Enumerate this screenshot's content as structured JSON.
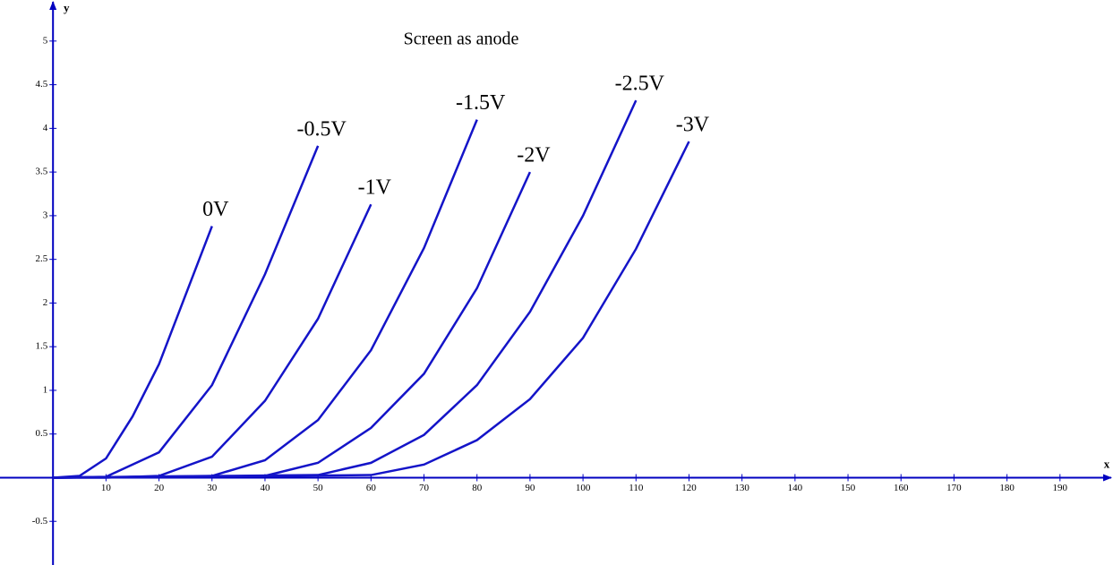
{
  "chart_data": {
    "type": "line",
    "title": "Screen as anode",
    "x_label": "x",
    "y_label": "y",
    "xlim": [
      -10,
      200
    ],
    "ylim": [
      -1,
      5.47
    ],
    "xticks": [
      10,
      20,
      30,
      40,
      50,
      60,
      70,
      80,
      90,
      100,
      110,
      120,
      130,
      140,
      150,
      160,
      170,
      180,
      190
    ],
    "yticks": [
      -0.5,
      0.5,
      1,
      1.5,
      2,
      2.5,
      3,
      3.5,
      4,
      4.5,
      5
    ],
    "axis_color": "#0000c0",
    "series": [
      {
        "name": "0V",
        "color": "#1414c8",
        "x": [
          0,
          5,
          10,
          15,
          20,
          30
        ],
        "values": [
          0,
          0.02,
          0.22,
          0.7,
          1.3,
          2.88
        ]
      },
      {
        "name": "-0.5V",
        "color": "#1414c8",
        "x": [
          0,
          10,
          20,
          30,
          40,
          50
        ],
        "values": [
          0,
          0.01,
          0.29,
          1.06,
          2.33,
          3.8
        ]
      },
      {
        "name": "-1V",
        "color": "#1414c8",
        "x": [
          0,
          10,
          20,
          30,
          40,
          50,
          60
        ],
        "values": [
          0,
          0,
          0.02,
          0.24,
          0.88,
          1.82,
          3.13
        ]
      },
      {
        "name": "-1.5V",
        "color": "#1414c8",
        "x": [
          0,
          30,
          40,
          50,
          60,
          70,
          80
        ],
        "values": [
          0,
          0.02,
          0.2,
          0.66,
          1.46,
          2.63,
          4.1
        ]
      },
      {
        "name": "-2V",
        "color": "#1414c8",
        "x": [
          0,
          40,
          50,
          60,
          70,
          80,
          90
        ],
        "values": [
          0,
          0.02,
          0.17,
          0.57,
          1.19,
          2.17,
          3.5
        ]
      },
      {
        "name": "-2.5V",
        "color": "#1414c8",
        "x": [
          0,
          50,
          60,
          70,
          80,
          90,
          100,
          110
        ],
        "values": [
          0,
          0.03,
          0.17,
          0.49,
          1.06,
          1.9,
          3.0,
          4.32
        ]
      },
      {
        "name": "-3V",
        "color": "#1414c8",
        "x": [
          0,
          60,
          70,
          80,
          90,
          100,
          110,
          120
        ],
        "values": [
          0,
          0.03,
          0.15,
          0.43,
          0.9,
          1.6,
          2.62,
          3.85
        ]
      }
    ]
  }
}
